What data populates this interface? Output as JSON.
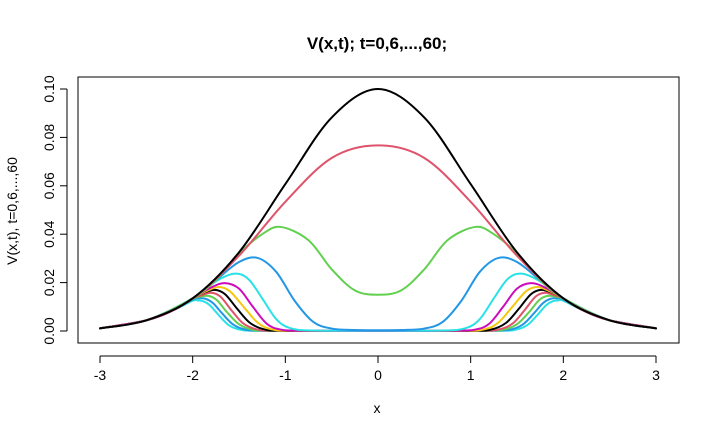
{
  "chart_data": {
    "type": "line",
    "title": "V(x,t); t=0,6,...,60;",
    "xlabel": "x",
    "ylabel": "V(x,t), t=0,6,...,60",
    "xlim": [
      -3,
      3
    ],
    "ylim": [
      0,
      0.1
    ],
    "xticks": [
      "-3",
      "-2",
      "-1",
      "0",
      "1",
      "2",
      "3"
    ],
    "yticks": [
      "0.00",
      "0.02",
      "0.04",
      "0.06",
      "0.08",
      "0.10"
    ],
    "grid": false,
    "legend": "none",
    "series": [
      {
        "color": "#000000",
        "x": [
          -3,
          -2.5,
          -2,
          -1.5,
          -1,
          -0.5,
          0,
          0.5,
          1,
          1.5,
          2,
          2.5,
          3
        ],
        "y": [
          0.0011,
          0.0044,
          0.0135,
          0.0325,
          0.0607,
          0.0882,
          0.1,
          0.0882,
          0.0607,
          0.0325,
          0.0135,
          0.0044,
          0.0011
        ]
      },
      {
        "color": "#DF536B",
        "x": [
          -3,
          -2.5,
          -2,
          -1.5,
          -1,
          -0.5,
          0,
          0.5,
          1,
          1.5,
          2,
          2.5,
          3
        ],
        "y": [
          0.0011,
          0.0044,
          0.0134,
          0.0311,
          0.0534,
          0.0715,
          0.0767,
          0.0715,
          0.0534,
          0.0311,
          0.0134,
          0.0044,
          0.0011
        ]
      },
      {
        "color": "#61D04F",
        "x": [
          -3,
          -2.5,
          -2,
          -1.75,
          -1.5,
          -1.25,
          -1.05,
          -0.75,
          -0.5,
          -0.25,
          0,
          0.25,
          0.5,
          0.75,
          1.05,
          1.25,
          1.5,
          1.75,
          2,
          2.5,
          3
        ],
        "y": [
          0.0011,
          0.0044,
          0.0135,
          0.0211,
          0.032,
          0.04,
          0.043,
          0.0375,
          0.0255,
          0.0168,
          0.015,
          0.0168,
          0.0255,
          0.0375,
          0.043,
          0.04,
          0.032,
          0.0211,
          0.0135,
          0.0044,
          0.0011
        ]
      },
      {
        "color": "#2297E6",
        "x": [
          -3,
          -2.5,
          -2,
          -1.75,
          -1.5,
          -1.3,
          -1.1,
          -0.9,
          -0.7,
          -0.5,
          -0.25,
          0,
          0.25,
          0.5,
          0.7,
          0.9,
          1.1,
          1.3,
          1.5,
          1.75,
          2,
          2.5,
          3
        ],
        "y": [
          0.0011,
          0.0044,
          0.0135,
          0.021,
          0.0285,
          0.0302,
          0.0245,
          0.0125,
          0.0038,
          0.001,
          0.0004,
          0.0003,
          0.0004,
          0.001,
          0.0038,
          0.0125,
          0.0245,
          0.0302,
          0.0285,
          0.021,
          0.0135,
          0.0044,
          0.0011
        ]
      },
      {
        "color": "#28E2E5",
        "x": [
          -3,
          -2.5,
          -2,
          -1.75,
          -1.55,
          -1.4,
          -1.25,
          -1.1,
          -0.95,
          -0.7,
          0,
          0.7,
          0.95,
          1.1,
          1.25,
          1.4,
          1.55,
          1.75,
          2,
          2.5,
          3
        ],
        "y": [
          0.0011,
          0.0044,
          0.0135,
          0.0205,
          0.0237,
          0.0215,
          0.0135,
          0.005,
          0.0012,
          0.0002,
          0.0001,
          0.0002,
          0.0012,
          0.005,
          0.0135,
          0.0215,
          0.0237,
          0.0205,
          0.0135,
          0.0044,
          0.0011
        ]
      },
      {
        "color": "#CD0BBC",
        "x": [
          -3,
          -2.5,
          -2.2,
          -2,
          -1.8,
          -1.65,
          -1.5,
          -1.35,
          -1.2,
          -1.05,
          -0.8,
          0,
          0.8,
          1.05,
          1.2,
          1.35,
          1.5,
          1.65,
          1.8,
          2,
          2.2,
          2.5,
          3
        ],
        "y": [
          0.0011,
          0.0044,
          0.0088,
          0.0135,
          0.018,
          0.0198,
          0.0175,
          0.01,
          0.003,
          0.0006,
          0.0001,
          0.0,
          0.0001,
          0.0006,
          0.003,
          0.01,
          0.0175,
          0.0198,
          0.018,
          0.0135,
          0.0088,
          0.0044,
          0.0011
        ]
      },
      {
        "color": "#F5C710",
        "x": [
          -3,
          -2.5,
          -2.2,
          -2,
          -1.85,
          -1.72,
          -1.6,
          -1.45,
          -1.3,
          -1.15,
          -0.9,
          0,
          0.9,
          1.15,
          1.3,
          1.45,
          1.6,
          1.72,
          1.85,
          2,
          2.2,
          2.5,
          3
        ],
        "y": [
          0.0011,
          0.0044,
          0.0088,
          0.0135,
          0.0165,
          0.0182,
          0.0165,
          0.01,
          0.0035,
          0.0007,
          0.0001,
          0.0,
          0.0001,
          0.0007,
          0.0035,
          0.01,
          0.0165,
          0.0182,
          0.0165,
          0.0135,
          0.0088,
          0.0044,
          0.0011
        ]
      },
      {
        "color": "#000000",
        "x": [
          -3,
          -2.5,
          -2.2,
          -2,
          -1.88,
          -1.76,
          -1.65,
          -1.52,
          -1.38,
          -1.22,
          -1.0,
          0,
          1.0,
          1.22,
          1.38,
          1.52,
          1.65,
          1.76,
          1.88,
          2,
          2.2,
          2.5,
          3
        ],
        "y": [
          0.0011,
          0.0044,
          0.0088,
          0.0135,
          0.0158,
          0.017,
          0.0152,
          0.0092,
          0.0033,
          0.0006,
          0.0001,
          0.0,
          0.0001,
          0.0006,
          0.0033,
          0.0092,
          0.0152,
          0.017,
          0.0158,
          0.0135,
          0.0088,
          0.0044,
          0.0011
        ]
      },
      {
        "color": "#DF536B",
        "x": [
          -3,
          -2.5,
          -2.2,
          -2,
          -1.9,
          -1.8,
          -1.7,
          -1.58,
          -1.45,
          -1.3,
          -1.1,
          0,
          1.1,
          1.3,
          1.45,
          1.58,
          1.7,
          1.8,
          1.9,
          2,
          2.2,
          2.5,
          3
        ],
        "y": [
          0.0011,
          0.0044,
          0.0088,
          0.0135,
          0.0148,
          0.0158,
          0.0142,
          0.0085,
          0.003,
          0.0006,
          0.0001,
          0.0,
          0.0001,
          0.0006,
          0.003,
          0.0085,
          0.0142,
          0.0158,
          0.0148,
          0.0135,
          0.0088,
          0.0044,
          0.0011
        ]
      },
      {
        "color": "#61D04F",
        "x": [
          -3,
          -2.5,
          -2.2,
          -2,
          -1.92,
          -1.83,
          -1.74,
          -1.63,
          -1.5,
          -1.36,
          -1.15,
          0,
          1.15,
          1.36,
          1.5,
          1.63,
          1.74,
          1.83,
          1.92,
          2,
          2.2,
          2.5,
          3
        ],
        "y": [
          0.0011,
          0.0044,
          0.0088,
          0.0133,
          0.0142,
          0.0145,
          0.0128,
          0.0078,
          0.0028,
          0.0006,
          0.0001,
          0.0,
          0.0001,
          0.0006,
          0.0028,
          0.0078,
          0.0128,
          0.0145,
          0.0142,
          0.0133,
          0.0088,
          0.0044,
          0.0011
        ]
      },
      {
        "color": "#2297E6",
        "x": [
          -3,
          -2.5,
          -2.2,
          -2,
          -1.93,
          -1.86,
          -1.78,
          -1.68,
          -1.56,
          -1.42,
          -1.2,
          0,
          1.2,
          1.42,
          1.56,
          1.68,
          1.78,
          1.86,
          1.93,
          2,
          2.2,
          2.5,
          3
        ],
        "y": [
          0.0011,
          0.0044,
          0.0088,
          0.013,
          0.0135,
          0.0133,
          0.0115,
          0.0072,
          0.0026,
          0.0005,
          0.0001,
          0.0,
          0.0001,
          0.0005,
          0.0026,
          0.0072,
          0.0115,
          0.0133,
          0.0135,
          0.013,
          0.0088,
          0.0044,
          0.0011
        ]
      },
      {
        "color": "#28E2E5",
        "x": [
          -3,
          -2.5,
          -2.2,
          -2,
          -1.94,
          -1.88,
          -1.81,
          -1.72,
          -1.61,
          -1.48,
          -1.25,
          0,
          1.25,
          1.48,
          1.61,
          1.72,
          1.81,
          1.88,
          1.94,
          2,
          2.2,
          2.5,
          3
        ],
        "y": [
          0.0011,
          0.0044,
          0.0088,
          0.0125,
          0.0126,
          0.0122,
          0.0105,
          0.0066,
          0.0024,
          0.0005,
          0.0001,
          0.0,
          0.0001,
          0.0005,
          0.0024,
          0.0066,
          0.0105,
          0.0122,
          0.0126,
          0.0125,
          0.0088,
          0.0044,
          0.0011
        ]
      }
    ]
  }
}
